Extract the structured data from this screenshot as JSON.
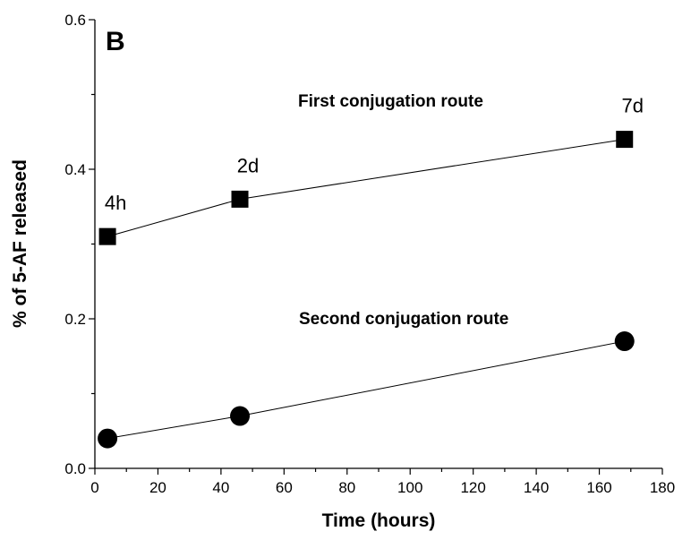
{
  "chart_data": {
    "type": "scatter",
    "panel_label": "B",
    "xlabel": "Time (hours)",
    "ylabel": "% of 5-AF released",
    "xlim": [
      0,
      180
    ],
    "ylim": [
      0,
      0.6
    ],
    "xticks": [
      0,
      20,
      40,
      60,
      80,
      100,
      120,
      140,
      160,
      180
    ],
    "yticks": [
      "0.0",
      "0.2",
      "0.4",
      "0.6"
    ],
    "grid": false,
    "connected": true,
    "series": [
      {
        "name": "First conjugation route",
        "marker": "square",
        "color": "#000000",
        "points": [
          {
            "x": 4,
            "y": 0.31,
            "label": "4h"
          },
          {
            "x": 46,
            "y": 0.36,
            "label": "2d"
          },
          {
            "x": 168,
            "y": 0.44,
            "label": "7d"
          }
        ]
      },
      {
        "name": "Second conjugation route",
        "marker": "circle",
        "color": "#000000",
        "points": [
          {
            "x": 4,
            "y": 0.04
          },
          {
            "x": 46,
            "y": 0.07
          },
          {
            "x": 168,
            "y": 0.17
          }
        ]
      }
    ]
  }
}
